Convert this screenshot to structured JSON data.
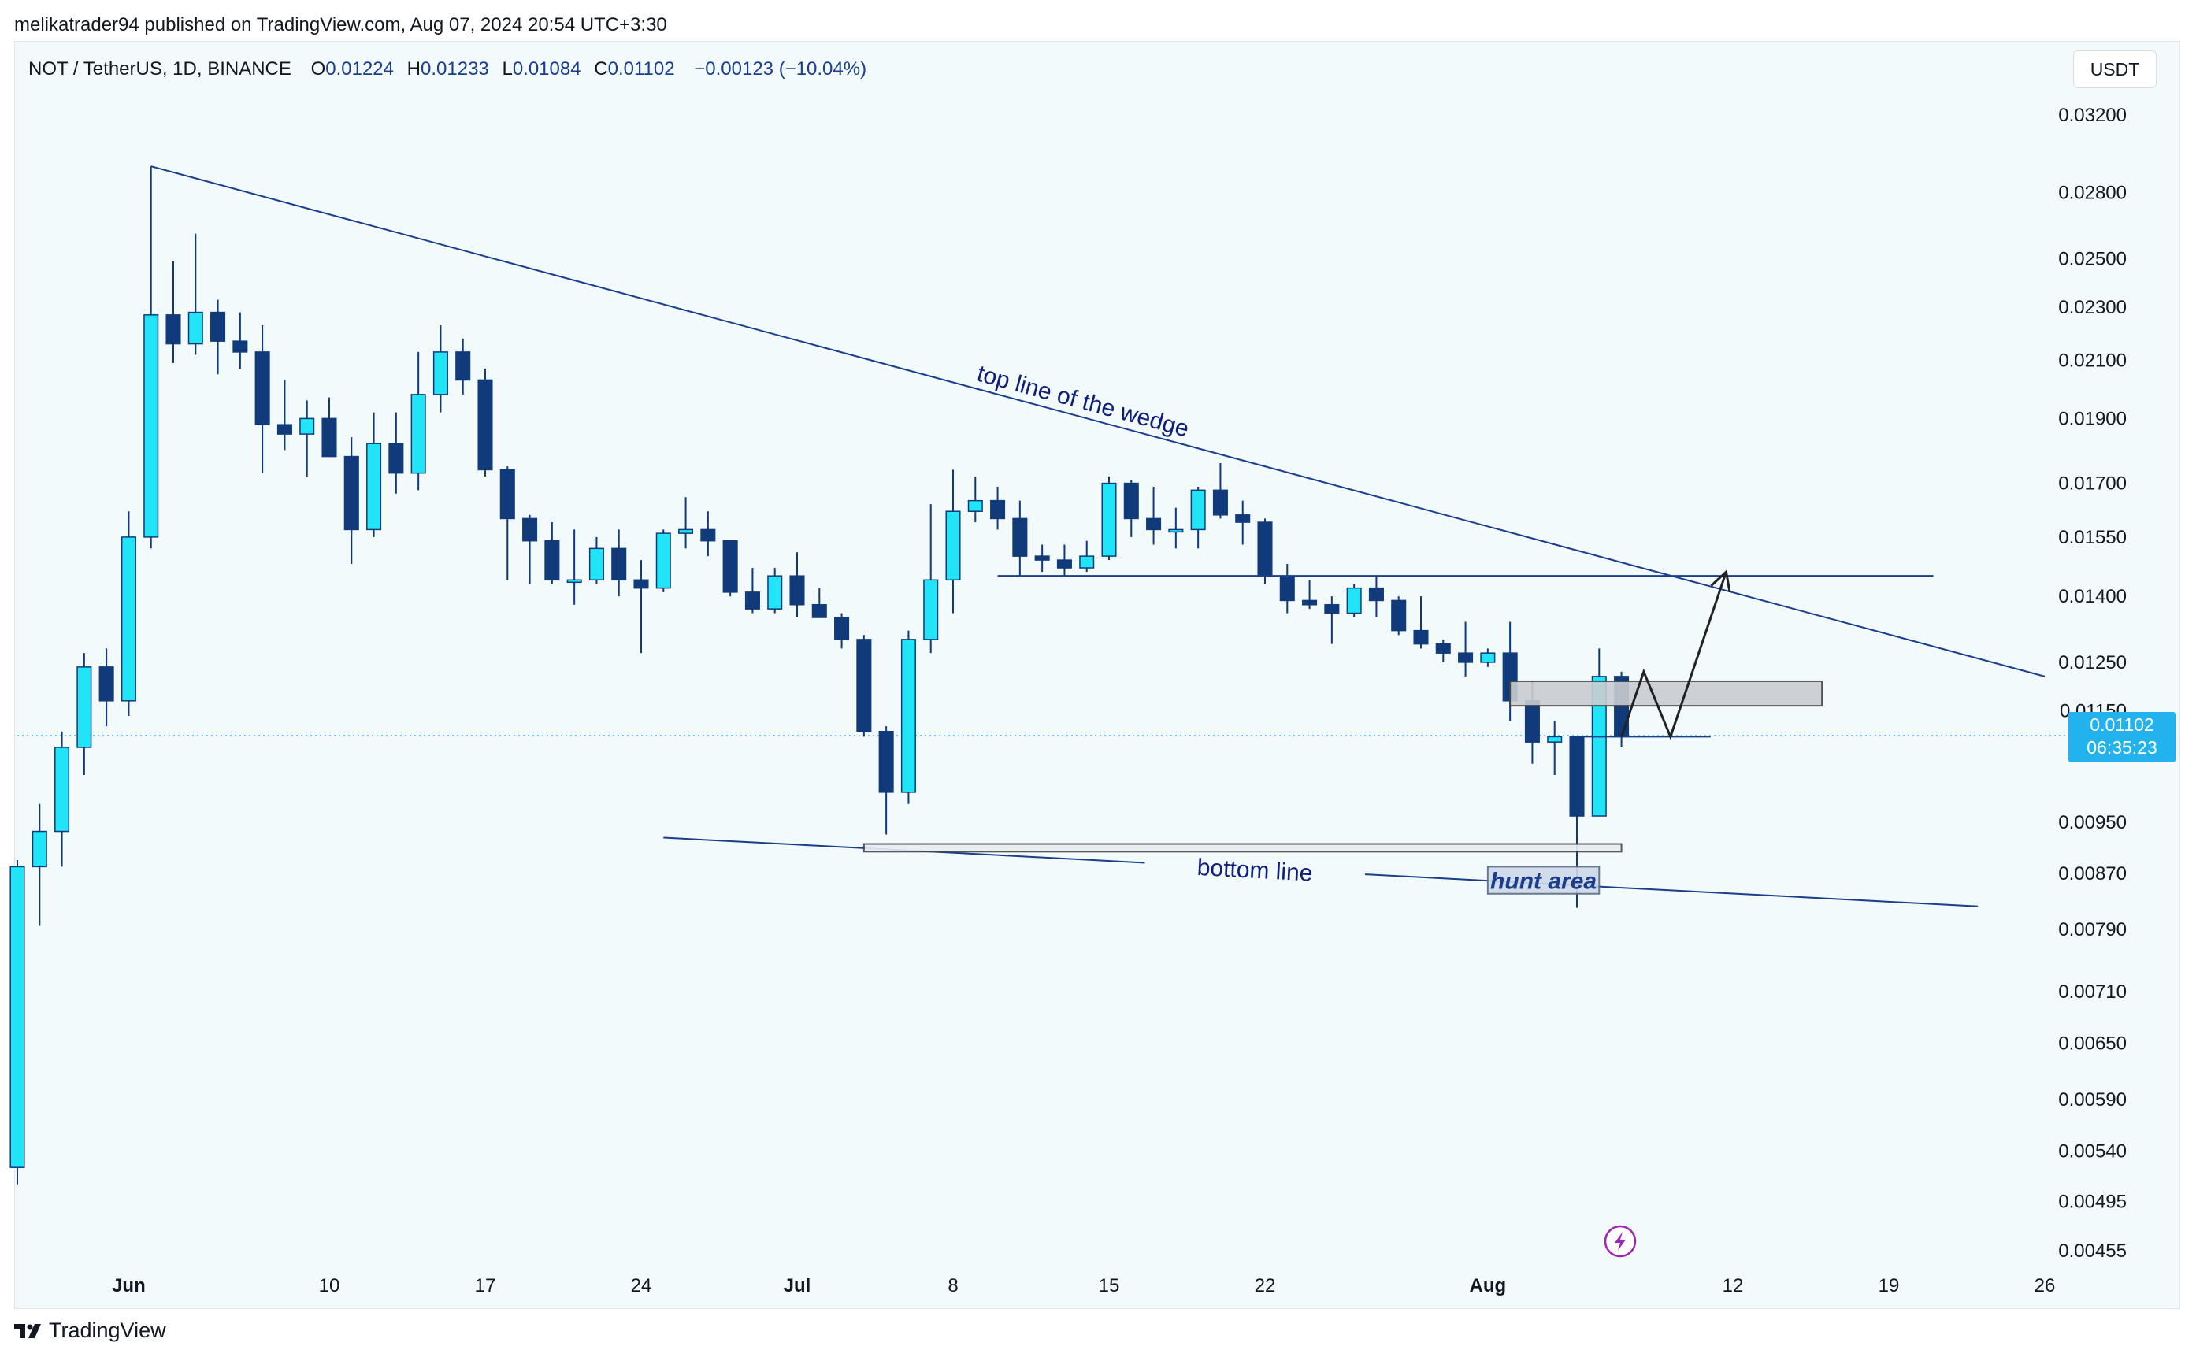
{
  "header": {
    "published_by": "melikatrader94 published on TradingView.com, Aug 07, 2024 20:54 UTC+3:30",
    "symbol": "NOT / TetherUS, 1D, BINANCE",
    "open_label": "O",
    "open": "0.01224",
    "high_label": "H",
    "high": "0.01233",
    "low_label": "L",
    "low": "0.01084",
    "close_label": "C",
    "close": "0.01102",
    "change": "−0.00123 (−10.04%)"
  },
  "currency_button": "USDT",
  "last_price": {
    "value": "0.01102",
    "countdown": "06:35:23"
  },
  "footer": {
    "brand": "TradingView"
  },
  "colors": {
    "up": "#22e4f7",
    "down": "#103a7a",
    "line": "#1a3e8c",
    "annotation": "#0d1f7a",
    "price_tag": "#22b2ed",
    "lightning": "#9c27b0"
  },
  "chart_data": {
    "type": "candlestick",
    "scale": "log",
    "title": "NOT / TetherUS, 1D, BINANCE",
    "y_ticks": [
      "0.03200",
      "0.02800",
      "0.02500",
      "0.02300",
      "0.02100",
      "0.01900",
      "0.01700",
      "0.01550",
      "0.01400",
      "0.01250",
      "0.01150",
      "0.00950",
      "0.00870",
      "0.00790",
      "0.00710",
      "0.00650",
      "0.00590",
      "0.00540",
      "0.00495",
      "0.00455"
    ],
    "x_ticks": [
      {
        "label": "Jun",
        "day": 5
      },
      {
        "label": "10",
        "day": 14
      },
      {
        "label": "17",
        "day": 21
      },
      {
        "label": "24",
        "day": 28
      },
      {
        "label": "Jul",
        "day": 35
      },
      {
        "label": "8",
        "day": 42
      },
      {
        "label": "15",
        "day": 49
      },
      {
        "label": "22",
        "day": 56
      },
      {
        "label": "Aug",
        "day": 66
      },
      {
        "label": "12",
        "day": 77
      },
      {
        "label": "19",
        "day": 84
      },
      {
        "label": "26",
        "day": 91
      }
    ],
    "x_range": [
      0,
      91
    ],
    "candles": [
      {
        "d": 0,
        "o": 0.00525,
        "h": 0.0089,
        "l": 0.0051,
        "c": 0.0088
      },
      {
        "d": 1,
        "o": 0.0088,
        "h": 0.0098,
        "l": 0.00795,
        "c": 0.00935
      },
      {
        "d": 2,
        "o": 0.00935,
        "h": 0.0111,
        "l": 0.0088,
        "c": 0.0108
      },
      {
        "d": 3,
        "o": 0.0108,
        "h": 0.0127,
        "l": 0.0103,
        "c": 0.0124
      },
      {
        "d": 4,
        "o": 0.0124,
        "h": 0.0128,
        "l": 0.0112,
        "c": 0.0117
      },
      {
        "d": 5,
        "o": 0.0117,
        "h": 0.0162,
        "l": 0.0114,
        "c": 0.0155
      },
      {
        "d": 6,
        "o": 0.0155,
        "h": 0.0293,
        "l": 0.0152,
        "c": 0.0227
      },
      {
        "d": 7,
        "o": 0.0227,
        "h": 0.0249,
        "l": 0.0209,
        "c": 0.0216
      },
      {
        "d": 8,
        "o": 0.0216,
        "h": 0.0261,
        "l": 0.0212,
        "c": 0.0228
      },
      {
        "d": 9,
        "o": 0.0228,
        "h": 0.0233,
        "l": 0.0205,
        "c": 0.0217
      },
      {
        "d": 10,
        "o": 0.0217,
        "h": 0.0228,
        "l": 0.0207,
        "c": 0.0213
      },
      {
        "d": 11,
        "o": 0.0213,
        "h": 0.0223,
        "l": 0.0173,
        "c": 0.0188
      },
      {
        "d": 12,
        "o": 0.0188,
        "h": 0.0203,
        "l": 0.018,
        "c": 0.0185
      },
      {
        "d": 13,
        "o": 0.0185,
        "h": 0.0196,
        "l": 0.0172,
        "c": 0.019
      },
      {
        "d": 14,
        "o": 0.019,
        "h": 0.0197,
        "l": 0.018,
        "c": 0.0178
      },
      {
        "d": 15,
        "o": 0.0178,
        "h": 0.0184,
        "l": 0.0148,
        "c": 0.0157
      },
      {
        "d": 16,
        "o": 0.0157,
        "h": 0.0192,
        "l": 0.0155,
        "c": 0.0182
      },
      {
        "d": 17,
        "o": 0.0182,
        "h": 0.0192,
        "l": 0.0167,
        "c": 0.0173
      },
      {
        "d": 18,
        "o": 0.0173,
        "h": 0.0213,
        "l": 0.0168,
        "c": 0.0198
      },
      {
        "d": 19,
        "o": 0.0198,
        "h": 0.0223,
        "l": 0.0192,
        "c": 0.0213
      },
      {
        "d": 20,
        "o": 0.0213,
        "h": 0.0218,
        "l": 0.0198,
        "c": 0.0203
      },
      {
        "d": 21,
        "o": 0.0203,
        "h": 0.0207,
        "l": 0.0172,
        "c": 0.0174
      },
      {
        "d": 22,
        "o": 0.0174,
        "h": 0.0175,
        "l": 0.0144,
        "c": 0.016
      },
      {
        "d": 23,
        "o": 0.016,
        "h": 0.0161,
        "l": 0.0143,
        "c": 0.0154
      },
      {
        "d": 24,
        "o": 0.0154,
        "h": 0.0159,
        "l": 0.0143,
        "c": 0.0144
      },
      {
        "d": 25,
        "o": 0.0144,
        "h": 0.0157,
        "l": 0.0138,
        "c": 0.0144
      },
      {
        "d": 26,
        "o": 0.0144,
        "h": 0.0155,
        "l": 0.0143,
        "c": 0.0152
      },
      {
        "d": 27,
        "o": 0.0152,
        "h": 0.0157,
        "l": 0.014,
        "c": 0.0144
      },
      {
        "d": 28,
        "o": 0.0144,
        "h": 0.0149,
        "l": 0.0127,
        "c": 0.0142
      },
      {
        "d": 29,
        "o": 0.0142,
        "h": 0.0157,
        "l": 0.0141,
        "c": 0.0156
      },
      {
        "d": 30,
        "o": 0.0156,
        "h": 0.0166,
        "l": 0.0152,
        "c": 0.0157
      },
      {
        "d": 31,
        "o": 0.0157,
        "h": 0.0162,
        "l": 0.015,
        "c": 0.0154
      },
      {
        "d": 32,
        "o": 0.0154,
        "h": 0.0154,
        "l": 0.014,
        "c": 0.0141
      },
      {
        "d": 33,
        "o": 0.0141,
        "h": 0.0147,
        "l": 0.0136,
        "c": 0.0137
      },
      {
        "d": 34,
        "o": 0.0137,
        "h": 0.0147,
        "l": 0.0136,
        "c": 0.0145
      },
      {
        "d": 35,
        "o": 0.0145,
        "h": 0.0151,
        "l": 0.0135,
        "c": 0.0138
      },
      {
        "d": 36,
        "o": 0.0138,
        "h": 0.0142,
        "l": 0.0135,
        "c": 0.0135
      },
      {
        "d": 37,
        "o": 0.0135,
        "h": 0.0136,
        "l": 0.0128,
        "c": 0.013
      },
      {
        "d": 38,
        "o": 0.013,
        "h": 0.0131,
        "l": 0.011,
        "c": 0.0111
      },
      {
        "d": 39,
        "o": 0.0111,
        "h": 0.0112,
        "l": 0.0093,
        "c": 0.01
      },
      {
        "d": 40,
        "o": 0.01,
        "h": 0.0132,
        "l": 0.0098,
        "c": 0.013
      },
      {
        "d": 41,
        "o": 0.013,
        "h": 0.0164,
        "l": 0.0127,
        "c": 0.0144
      },
      {
        "d": 42,
        "o": 0.0144,
        "h": 0.0174,
        "l": 0.0136,
        "c": 0.0162
      },
      {
        "d": 43,
        "o": 0.0162,
        "h": 0.0172,
        "l": 0.0159,
        "c": 0.0165
      },
      {
        "d": 44,
        "o": 0.0165,
        "h": 0.0169,
        "l": 0.0157,
        "c": 0.016
      },
      {
        "d": 45,
        "o": 0.016,
        "h": 0.0165,
        "l": 0.0145,
        "c": 0.015
      },
      {
        "d": 46,
        "o": 0.015,
        "h": 0.0153,
        "l": 0.0146,
        "c": 0.0149
      },
      {
        "d": 47,
        "o": 0.0149,
        "h": 0.0153,
        "l": 0.0145,
        "c": 0.0147
      },
      {
        "d": 48,
        "o": 0.0147,
        "h": 0.0154,
        "l": 0.0146,
        "c": 0.015
      },
      {
        "d": 49,
        "o": 0.015,
        "h": 0.0172,
        "l": 0.0149,
        "c": 0.017
      },
      {
        "d": 50,
        "o": 0.017,
        "h": 0.0171,
        "l": 0.0155,
        "c": 0.016
      },
      {
        "d": 51,
        "o": 0.016,
        "h": 0.0169,
        "l": 0.0153,
        "c": 0.0157
      },
      {
        "d": 52,
        "o": 0.0157,
        "h": 0.0163,
        "l": 0.0152,
        "c": 0.0157
      },
      {
        "d": 53,
        "o": 0.0157,
        "h": 0.0169,
        "l": 0.0152,
        "c": 0.0168
      },
      {
        "d": 54,
        "o": 0.0168,
        "h": 0.0176,
        "l": 0.016,
        "c": 0.0161
      },
      {
        "d": 55,
        "o": 0.0161,
        "h": 0.0165,
        "l": 0.0153,
        "c": 0.0159
      },
      {
        "d": 56,
        "o": 0.0159,
        "h": 0.016,
        "l": 0.0143,
        "c": 0.0145
      },
      {
        "d": 57,
        "o": 0.0145,
        "h": 0.0148,
        "l": 0.0136,
        "c": 0.0139
      },
      {
        "d": 58,
        "o": 0.0139,
        "h": 0.0144,
        "l": 0.0137,
        "c": 0.0138
      },
      {
        "d": 59,
        "o": 0.0138,
        "h": 0.014,
        "l": 0.0129,
        "c": 0.0136
      },
      {
        "d": 60,
        "o": 0.0136,
        "h": 0.0143,
        "l": 0.0135,
        "c": 0.0142
      },
      {
        "d": 61,
        "o": 0.0142,
        "h": 0.0145,
        "l": 0.0135,
        "c": 0.0139
      },
      {
        "d": 62,
        "o": 0.0139,
        "h": 0.014,
        "l": 0.0131,
        "c": 0.0132
      },
      {
        "d": 63,
        "o": 0.0132,
        "h": 0.014,
        "l": 0.0128,
        "c": 0.0129
      },
      {
        "d": 64,
        "o": 0.0129,
        "h": 0.013,
        "l": 0.0125,
        "c": 0.0127
      },
      {
        "d": 65,
        "o": 0.0127,
        "h": 0.0134,
        "l": 0.0122,
        "c": 0.0125
      },
      {
        "d": 66,
        "o": 0.0125,
        "h": 0.0128,
        "l": 0.0124,
        "c": 0.0127
      },
      {
        "d": 67,
        "o": 0.0127,
        "h": 0.0134,
        "l": 0.0113,
        "c": 0.0117
      },
      {
        "d": 68,
        "o": 0.0117,
        "h": 0.0121,
        "l": 0.0105,
        "c": 0.0109
      },
      {
        "d": 69,
        "o": 0.0109,
        "h": 0.0113,
        "l": 0.0103,
        "c": 0.011
      },
      {
        "d": 70,
        "o": 0.011,
        "h": 0.011,
        "l": 0.0082,
        "c": 0.0096
      },
      {
        "d": 71,
        "o": 0.0096,
        "h": 0.0128,
        "l": 0.0096,
        "c": 0.0122
      },
      {
        "d": 72,
        "o": 0.0122,
        "h": 0.0123,
        "l": 0.0108,
        "c": 0.011
      }
    ],
    "annotations": [
      {
        "type": "trendline",
        "label": "top line of the wedge",
        "from": {
          "day": 6,
          "price": 0.0293
        },
        "to": {
          "day": 91,
          "price": 0.0122
        }
      },
      {
        "type": "trendline",
        "label": "bottom line",
        "from": {
          "day": 29,
          "price": 0.00925
        },
        "to": {
          "day": 88,
          "price": 0.00822
        }
      },
      {
        "type": "hline",
        "price": 0.0145,
        "from_day": 44,
        "to_day": 86
      },
      {
        "type": "hline",
        "price": 0.011,
        "from_day": 70,
        "to_day": 76
      },
      {
        "type": "zone",
        "from_day": 38,
        "to_day": 72,
        "low": 0.00903,
        "high": 0.00915
      },
      {
        "type": "zone",
        "from_day": 67,
        "to_day": 81,
        "low": 0.0116,
        "high": 0.0121
      },
      {
        "type": "zone",
        "label": "hunt area",
        "from_day": 66,
        "to_day": 71,
        "low": 0.0084,
        "high": 0.0088
      },
      {
        "type": "path",
        "points": [
          {
            "day": 72,
            "price": 0.011
          },
          {
            "day": 73,
            "price": 0.0123
          },
          {
            "day": 74.2,
            "price": 0.011
          },
          {
            "day": 76.7,
            "price": 0.0146
          }
        ]
      }
    ]
  }
}
